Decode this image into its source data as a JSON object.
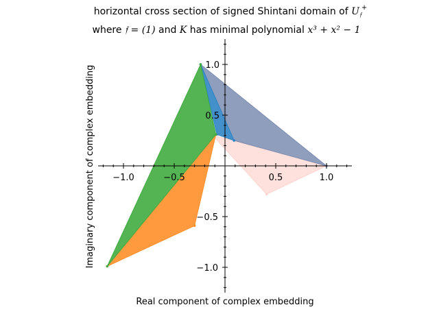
{
  "chart_data": {
    "type": "area",
    "title_line1_prefix": "horizontal cross section of signed Shintani domain of ",
    "title_line1_math": "U",
    "title_line1_math_sub": "𝔣",
    "title_line1_math_sup": "+",
    "title_line2_prefix": "where ",
    "title_line2_math1": "𝔣 = (1)",
    "title_line2_mid": " and ",
    "title_line2_math2": "K",
    "title_line2_mid2": " has minimal polynomial ",
    "title_line2_math3": "x³ + x² − 1",
    "xlabel": "Real component of complex embedding",
    "ylabel": "Imaginary component of complex embedding",
    "xlim": [
      -1.25,
      1.25
    ],
    "ylim": [
      -1.25,
      1.25
    ],
    "xticks": [
      -1.0,
      -0.5,
      0.5,
      1.0
    ],
    "xtick_labels": [
      "−1.0",
      "−0.5",
      "0.5",
      "1.0"
    ],
    "yticks": [
      1.0,
      0.5,
      -0.5,
      -1.0
    ],
    "ytick_labels": [
      "1.0",
      "0.5",
      "−0.5",
      "−1.0"
    ],
    "series": [
      {
        "color": "#fdd5d0",
        "opacity": 0.75,
        "points": [
          [
            -0.12,
            0.3
          ],
          [
            0.09,
            0.25
          ],
          [
            1.0,
            0.0
          ],
          [
            0.41,
            -0.28
          ]
        ]
      },
      {
        "color": "#7d8db1",
        "opacity": 0.85,
        "points": [
          [
            -0.24,
            1.0
          ],
          [
            0.09,
            0.25
          ],
          [
            1.0,
            0.0
          ]
        ]
      },
      {
        "color": "#2f84c4",
        "opacity": 0.9,
        "points": [
          [
            -0.24,
            1.0
          ],
          [
            -0.08,
            0.31
          ],
          [
            0.09,
            0.25
          ]
        ]
      },
      {
        "color": "#ff8f2a",
        "opacity": 0.9,
        "points": [
          [
            -1.16,
            -0.99
          ],
          [
            -0.3,
            -0.59
          ],
          [
            -0.09,
            0.31
          ]
        ]
      },
      {
        "color": "#41ac41",
        "opacity": 0.9,
        "points": [
          [
            -1.16,
            -0.99
          ],
          [
            -0.24,
            1.0
          ],
          [
            -0.09,
            0.31
          ]
        ]
      }
    ]
  }
}
